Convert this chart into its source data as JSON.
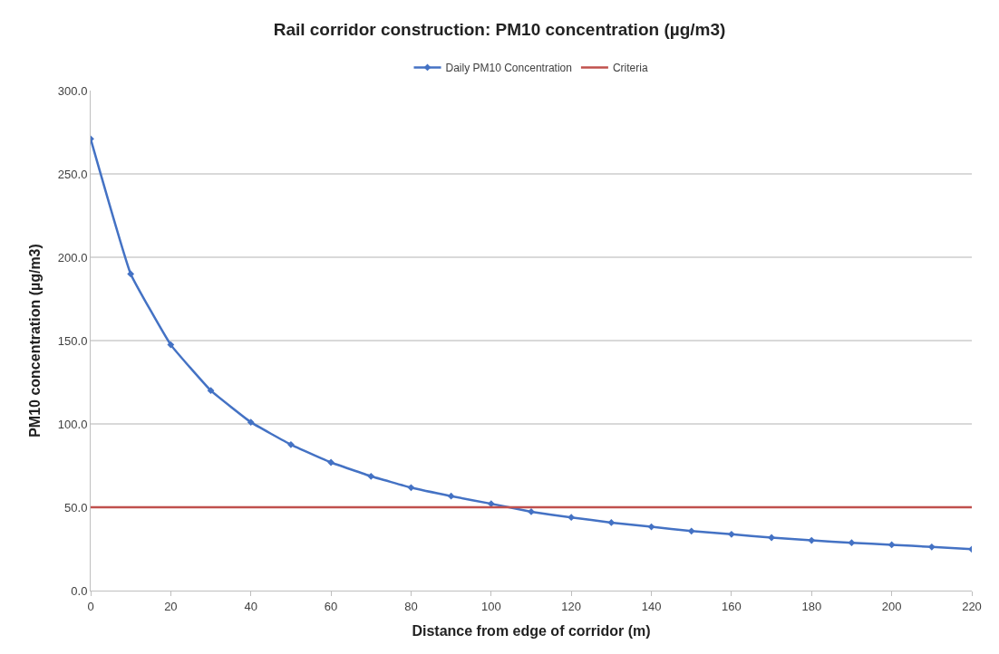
{
  "chart_data": {
    "type": "line",
    "title": "Rail corridor construction: PM10 concentration (µg/m3)",
    "xlabel": "Distance from edge of corridor (m)",
    "ylabel": "PM10 concentration (µg/m3)",
    "x": [
      0,
      10,
      20,
      30,
      40,
      50,
      60,
      70,
      80,
      90,
      100,
      110,
      120,
      130,
      140,
      150,
      160,
      170,
      180,
      190,
      200,
      210,
      220
    ],
    "series": [
      {
        "name": "Daily PM10 Concentration",
        "color": "#4472c4",
        "marker": "diamond",
        "values": [
          271,
          190,
          147.5,
          120,
          101,
          87.6,
          76.9,
          68.6,
          61.8,
          56.7,
          52.1,
          47.3,
          43.9,
          40.8,
          38.3,
          35.7,
          33.8,
          31.8,
          30.1,
          28.7,
          27.5,
          26.2,
          24.8
        ]
      },
      {
        "name": "Criteria",
        "color": "#c0504d",
        "marker": "none",
        "x": [
          0,
          220
        ],
        "values": [
          50,
          50
        ]
      }
    ],
    "xlim": [
      0,
      220
    ],
    "xticks": [
      0,
      20,
      40,
      60,
      80,
      100,
      120,
      140,
      160,
      180,
      200,
      220
    ],
    "ylim": [
      0,
      300
    ],
    "yticks": [
      {
        "value": 0,
        "label": "0.0"
      },
      {
        "value": 50,
        "label": "50.0"
      },
      {
        "value": 100,
        "label": "100.0"
      },
      {
        "value": 150,
        "label": "150.0"
      },
      {
        "value": 200,
        "label": "200.0"
      },
      {
        "value": 250,
        "label": "250.0"
      },
      {
        "value": 300,
        "label": "300.0"
      }
    ],
    "grid": "y",
    "legend": "top",
    "line_style": "solid"
  }
}
